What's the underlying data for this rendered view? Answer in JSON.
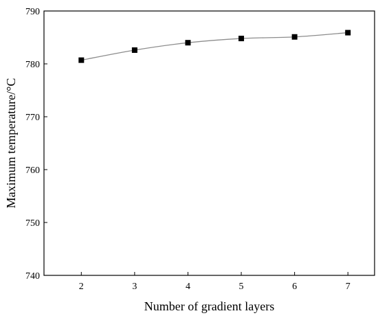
{
  "chart_data": {
    "type": "line",
    "title": "",
    "xlabel": "Number of gradient layers",
    "ylabel": "Maximum temperature/°C",
    "x": [
      2,
      3,
      4,
      5,
      6,
      7
    ],
    "xticks": [
      "2",
      "3",
      "4",
      "5",
      "6",
      "7"
    ],
    "xlim": [
      1.3,
      7.5
    ],
    "ylim": [
      740,
      790
    ],
    "yticks": [
      "740",
      "750",
      "760",
      "770",
      "780",
      "790"
    ],
    "series": [
      {
        "values": [
          780.7,
          782.6,
          784.0,
          784.8,
          785.1,
          785.9
        ],
        "color": "#000000",
        "line_color": "#8c8c8c",
        "marker": "square"
      }
    ],
    "grid": false,
    "legend": "none"
  }
}
